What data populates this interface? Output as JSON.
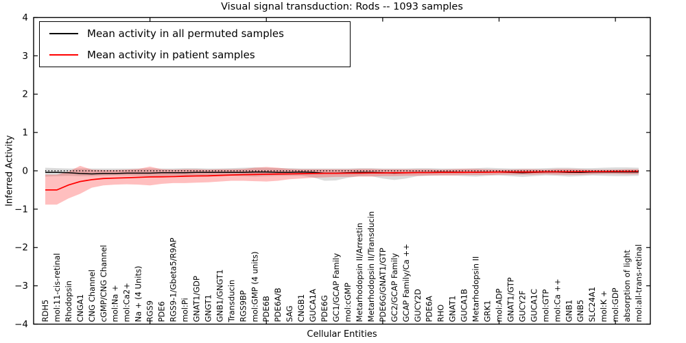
{
  "title": {
    "text": "Visual signal transduction: Rods -- 1093 samples"
  },
  "axes": {
    "xlabel": "Cellular Entities",
    "ylabel": "Inferred Activity"
  },
  "legend": {
    "position": "upper left",
    "entries": [
      {
        "label": "Mean activity in all permuted samples",
        "color": "#000000"
      },
      {
        "label": "Mean activity in patient samples",
        "color": "#ff0000"
      }
    ]
  },
  "chart_data": {
    "type": "line",
    "title": "Visual signal transduction: Rods -- 1093 samples",
    "xlabel": "Cellular Entities",
    "ylabel": "Inferred Activity",
    "ylim": [
      -4,
      4
    ],
    "xlim": [
      0,
      53
    ],
    "grid": false,
    "legend_position": "upper left",
    "yticks": [
      {
        "value": 4,
        "label": "4"
      },
      {
        "value": 3,
        "label": "3"
      },
      {
        "value": 2,
        "label": "2"
      },
      {
        "value": 1,
        "label": "1"
      },
      {
        "value": 0,
        "label": "0"
      },
      {
        "value": -1,
        "label": "−1"
      },
      {
        "value": -2,
        "label": "−2"
      },
      {
        "value": -3,
        "label": "−3"
      },
      {
        "value": -4,
        "label": "−4"
      }
    ],
    "x_major_ticks": [
      10,
      20,
      30,
      40,
      50
    ],
    "zero_reference_line": {
      "y": 0,
      "style": "dotted",
      "color": "#000000"
    },
    "categories": [
      "RDH5",
      "mol:11-cis-retinal",
      "Rhodopsin",
      "CNGA1",
      "CNG Channel",
      "cGMP/CNG Channel",
      "mol:Na +",
      "mol:Ca2+",
      "Na + (4 Units)",
      "RGS9",
      "PDE6",
      "RGS9-1/Gbeta5/R9AP",
      "mol:Pi",
      "GNAT1/GDP",
      "GNGT1",
      "GNB1/GNGT1",
      "Transducin",
      "RGS9BP",
      "mol:GMP (4 units)",
      "PDE6B",
      "PDE6A/B",
      "SAG",
      "CNGB1",
      "GUCA1A",
      "PDE6G",
      "GC1/GCAP Family",
      "mol:cGMP",
      "Metarhodopsin II/Arrestin",
      "Metarhodopsin II/Transducin",
      "PDE6G/GNAT1/GTP",
      "GC2/GCAP Family",
      "GCAP Family/Ca ++",
      "GUCY2D",
      "PDE6A",
      "RHO",
      "GNAT1",
      "GUCA1B",
      "Metarhodopsin II",
      "GRK1",
      "mol:ADP",
      "GNAT1/GTP",
      "GUCY2F",
      "GUCA1C",
      "mol:GTP",
      "mol:Ca ++",
      "GNB1",
      "GNB5",
      "SLC24A1",
      "mol:K +",
      "mol:GDP",
      "absorption of light",
      "mol:all-trans-retinal"
    ],
    "series": [
      {
        "name": "Mean activity in all permuted samples",
        "color": "#000000",
        "band_color": "#000000",
        "band_opacity": 0.14,
        "values": [
          -0.04,
          -0.04,
          -0.05,
          -0.07,
          -0.08,
          -0.07,
          -0.07,
          -0.06,
          -0.06,
          -0.06,
          -0.05,
          -0.05,
          -0.05,
          -0.04,
          -0.04,
          -0.04,
          -0.04,
          -0.04,
          -0.03,
          -0.03,
          -0.04,
          -0.04,
          -0.03,
          -0.04,
          -0.06,
          -0.06,
          -0.05,
          -0.04,
          -0.04,
          -0.05,
          -0.06,
          -0.05,
          -0.04,
          -0.04,
          -0.03,
          -0.03,
          -0.04,
          -0.04,
          -0.03,
          -0.03,
          -0.04,
          -0.05,
          -0.04,
          -0.03,
          -0.03,
          -0.04,
          -0.04,
          -0.03,
          -0.03,
          -0.03,
          -0.03,
          -0.03
        ],
        "band_upper": [
          0.08,
          0.07,
          0.06,
          0.06,
          0.06,
          0.06,
          0.06,
          0.06,
          0.06,
          0.06,
          0.06,
          0.06,
          0.07,
          0.07,
          0.06,
          0.06,
          0.07,
          0.08,
          0.09,
          0.08,
          0.07,
          0.07,
          0.06,
          0.06,
          0.06,
          0.06,
          0.06,
          0.07,
          0.07,
          0.06,
          0.06,
          0.06,
          0.07,
          0.07,
          0.06,
          0.06,
          0.06,
          0.07,
          0.08,
          0.07,
          0.06,
          0.06,
          0.06,
          0.07,
          0.08,
          0.08,
          0.07,
          0.07,
          0.08,
          0.09,
          0.09,
          0.08
        ],
        "band_lower": [
          -0.15,
          -0.14,
          -0.13,
          -0.14,
          -0.14,
          -0.13,
          -0.12,
          -0.12,
          -0.13,
          -0.14,
          -0.13,
          -0.12,
          -0.12,
          -0.12,
          -0.12,
          -0.12,
          -0.13,
          -0.14,
          -0.15,
          -0.14,
          -0.13,
          -0.13,
          -0.13,
          -0.17,
          -0.26,
          -0.25,
          -0.18,
          -0.14,
          -0.14,
          -0.2,
          -0.24,
          -0.2,
          -0.14,
          -0.13,
          -0.12,
          -0.12,
          -0.14,
          -0.15,
          -0.13,
          -0.12,
          -0.14,
          -0.16,
          -0.14,
          -0.12,
          -0.13,
          -0.15,
          -0.14,
          -0.12,
          -0.13,
          -0.14,
          -0.14,
          -0.13
        ]
      },
      {
        "name": "Mean activity in patient samples",
        "color": "#ff0000",
        "band_color": "#ff0000",
        "band_opacity": 0.25,
        "values": [
          -0.5,
          -0.5,
          -0.37,
          -0.28,
          -0.23,
          -0.2,
          -0.19,
          -0.18,
          -0.17,
          -0.16,
          -0.155,
          -0.15,
          -0.14,
          -0.135,
          -0.13,
          -0.12,
          -0.11,
          -0.1,
          -0.095,
          -0.09,
          -0.085,
          -0.08,
          -0.075,
          -0.07,
          -0.065,
          -0.065,
          -0.06,
          -0.06,
          -0.055,
          -0.055,
          -0.05,
          -0.05,
          -0.045,
          -0.045,
          -0.04,
          -0.04,
          -0.04,
          -0.035,
          -0.035,
          -0.03,
          -0.03,
          -0.03,
          -0.03,
          -0.025,
          -0.025,
          -0.025,
          -0.02,
          -0.02,
          -0.02,
          -0.015,
          -0.015,
          -0.01
        ],
        "band_upper": [
          -0.1,
          -0.1,
          -0.02,
          0.13,
          0.03,
          0.02,
          0.02,
          0.03,
          0.05,
          0.11,
          0.04,
          0.03,
          0.04,
          0.04,
          0.03,
          0.04,
          0.04,
          0.05,
          0.08,
          0.1,
          0.08,
          0.05,
          0.04,
          0.04,
          0.04,
          0.04,
          0.04,
          0.05,
          0.05,
          0.04,
          0.04,
          0.04,
          0.04,
          0.04,
          0.03,
          0.04,
          0.05,
          0.05,
          0.04,
          0.03,
          0.03,
          0.04,
          0.04,
          0.03,
          0.05,
          0.05,
          0.04,
          0.03,
          0.03,
          0.03,
          0.04,
          0.04
        ],
        "band_lower": [
          -0.88,
          -0.88,
          -0.72,
          -0.6,
          -0.44,
          -0.38,
          -0.36,
          -0.35,
          -0.36,
          -0.38,
          -0.34,
          -0.32,
          -0.32,
          -0.31,
          -0.3,
          -0.28,
          -0.26,
          -0.26,
          -0.27,
          -0.28,
          -0.26,
          -0.22,
          -0.2,
          -0.18,
          -0.17,
          -0.16,
          -0.16,
          -0.15,
          -0.15,
          -0.14,
          -0.14,
          -0.13,
          -0.13,
          -0.12,
          -0.12,
          -0.12,
          -0.11,
          -0.11,
          -0.11,
          -0.1,
          -0.1,
          -0.1,
          -0.1,
          -0.09,
          -0.1,
          -0.1,
          -0.1,
          -0.09,
          -0.08,
          -0.08,
          -0.09,
          -0.09
        ]
      }
    ]
  }
}
